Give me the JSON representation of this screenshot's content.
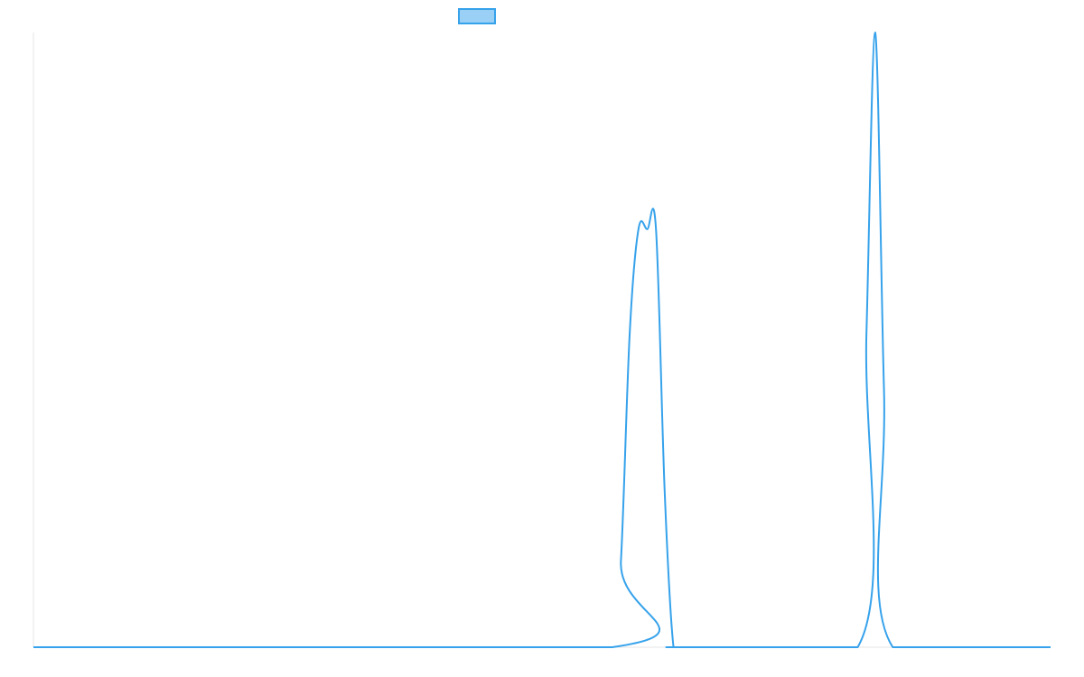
{
  "chart_data": {
    "type": "line",
    "title": "",
    "xlabel": "",
    "ylabel": "",
    "legend": {
      "position": "top-center",
      "items": [
        {
          "label": "",
          "color": "#36A2EB",
          "fill": "#9AD0F5"
        }
      ]
    },
    "grid": false,
    "x": [
      0,
      66,
      67,
      68,
      69,
      70,
      71,
      72,
      73,
      74,
      94,
      95,
      96,
      97,
      98,
      116
    ],
    "xlim": [
      0,
      116
    ],
    "ylim": [
      0,
      1
    ],
    "series": [
      {
        "name": "",
        "color": "#36A2EB",
        "values": [
          0,
          0,
          0.14,
          0.51,
          0.68,
          0.68,
          0.68,
          0.25,
          0.0,
          0,
          0,
          0.51,
          1.0,
          0.42,
          0,
          0
        ]
      }
    ]
  }
}
